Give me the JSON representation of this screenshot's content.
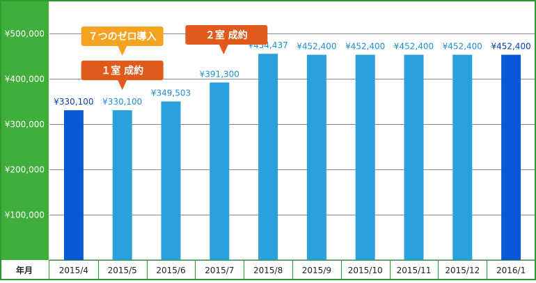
{
  "chart_data": {
    "type": "bar",
    "x_header": "年月",
    "categories": [
      "2015/4",
      "2015/5",
      "2015/6",
      "2015/7",
      "2015/8",
      "2015/9",
      "2015/10",
      "2015/11",
      "2015/12",
      "2016/1"
    ],
    "values": [
      330100,
      330100,
      349503,
      391300,
      454437,
      452400,
      452400,
      452400,
      452400,
      452400
    ],
    "data_labels": [
      "¥330,100",
      "¥330,100",
      "¥349,503",
      "¥391,300",
      "¥454,437",
      "¥452,400",
      "¥452,400",
      "¥452,400",
      "¥452,400",
      "¥452,400"
    ],
    "highlighted": [
      true,
      false,
      false,
      false,
      false,
      false,
      false,
      false,
      false,
      true
    ],
    "y_ticks": [
      100000,
      200000,
      300000,
      400000,
      500000
    ],
    "y_tick_labels": [
      "¥100,000",
      "¥200,000",
      "¥300,000",
      "¥400,000",
      "¥500,000"
    ],
    "ylim": [
      0,
      570000
    ],
    "grid": true,
    "annotations": [
      {
        "text": "７つのゼロ導入",
        "category_index": 1,
        "pointer": "down",
        "color": "#f4a321"
      },
      {
        "text": "１室 成約",
        "category_index": 1,
        "pointer": "down",
        "color": "#e05a1c"
      },
      {
        "text": "２室 成約",
        "category_index": 3,
        "pointer": "down",
        "color": "#e05a1c"
      }
    ],
    "colors": {
      "bar": "#2aa0dc",
      "bar_highlight": "#0a58d6",
      "label": "#1e8fd0",
      "label_highlight": "#0a3fa8",
      "axis_panel": "#3fae3a",
      "frame": "#2e9a32"
    }
  }
}
